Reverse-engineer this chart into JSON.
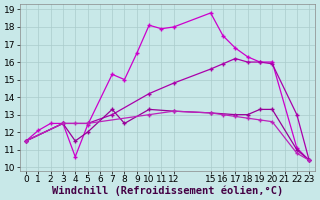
{
  "xlabel": "Windchill (Refroidissement éolien,°C)",
  "xlim": [
    -0.5,
    23.5
  ],
  "ylim": [
    9.8,
    19.3
  ],
  "xticks": [
    0,
    1,
    2,
    3,
    4,
    5,
    6,
    7,
    8,
    9,
    10,
    11,
    12,
    15,
    16,
    17,
    18,
    19,
    20,
    21,
    22,
    23
  ],
  "yticks": [
    10,
    11,
    12,
    13,
    14,
    15,
    16,
    17,
    18,
    19
  ],
  "bg_color": "#c8e8e8",
  "grid_color": "#aacccc",
  "line1_color": "#cc00cc",
  "line2_color": "#990099",
  "line3_color": "#bb22bb",
  "line4_color": "#aa00aa",
  "tick_fontsize": 6.5,
  "xlabel_fontsize": 7.5,
  "line1_x": [
    0,
    1,
    2,
    3,
    4,
    5,
    7,
    8,
    9,
    10,
    11,
    12,
    15,
    16,
    17,
    18,
    19,
    20,
    22,
    23
  ],
  "line1_y": [
    11.5,
    12.1,
    12.5,
    12.5,
    10.6,
    12.4,
    15.3,
    15.0,
    16.5,
    18.1,
    17.9,
    18.0,
    18.8,
    17.5,
    16.8,
    16.3,
    16.0,
    16.0,
    11.1,
    10.4
  ],
  "line2_x": [
    0,
    3,
    4,
    5,
    7,
    8,
    10,
    12,
    15,
    17,
    18,
    19,
    20,
    22,
    23
  ],
  "line2_y": [
    11.5,
    12.5,
    11.5,
    12.0,
    13.3,
    12.5,
    13.3,
    13.2,
    13.1,
    13.0,
    13.0,
    13.3,
    13.3,
    11.0,
    10.4
  ],
  "line3_x": [
    0,
    3,
    4,
    5,
    10,
    12,
    15,
    16,
    17,
    18,
    19,
    20,
    22,
    23
  ],
  "line3_y": [
    11.5,
    12.5,
    12.5,
    12.5,
    13.0,
    13.2,
    13.1,
    13.0,
    12.9,
    12.8,
    12.7,
    12.6,
    10.8,
    10.4
  ],
  "line4_x": [
    0,
    3,
    5,
    7,
    10,
    12,
    15,
    16,
    17,
    18,
    19,
    20,
    22,
    23
  ],
  "line4_y": [
    11.5,
    12.5,
    12.5,
    13.0,
    14.2,
    14.8,
    15.6,
    15.9,
    16.2,
    16.0,
    16.0,
    15.9,
    13.0,
    10.4
  ]
}
